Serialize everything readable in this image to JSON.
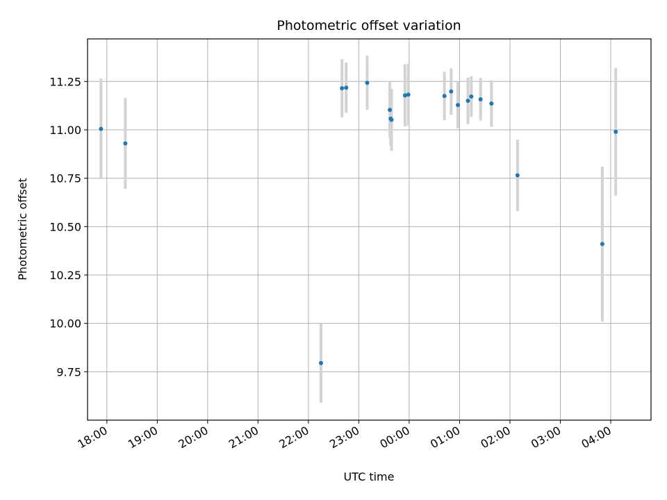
{
  "chart_data": {
    "type": "scatter",
    "title": "Photometric offset variation",
    "xlabel": "UTC time",
    "ylabel": "Photometric offset",
    "x_axis": "time-of-day (UTC), spanning midnight",
    "xlim": [
      "17:37",
      "04:48"
    ],
    "ylim": [
      9.5,
      11.47
    ],
    "x_ticks": [
      "18:00",
      "19:00",
      "20:00",
      "21:00",
      "22:00",
      "23:00",
      "00:00",
      "01:00",
      "02:00",
      "03:00",
      "04:00"
    ],
    "y_ticks": [
      9.75,
      10.0,
      10.25,
      10.5,
      10.75,
      11.0,
      11.25
    ],
    "y_tick_labels": [
      "9.75",
      "10.00",
      "10.25",
      "10.50",
      "10.75",
      "11.00",
      "11.25"
    ],
    "grid": true,
    "marker_color": "#1f77b4",
    "errorbar_color": "#d3d3d3",
    "points": [
      {
        "t": "17:53",
        "y": 11.005,
        "err": 0.26
      },
      {
        "t": "18:22",
        "y": 10.93,
        "err": 0.235
      },
      {
        "t": "22:15",
        "y": 9.795,
        "err": 0.205
      },
      {
        "t": "22:40",
        "y": 11.215,
        "err": 0.15
      },
      {
        "t": "22:45",
        "y": 11.218,
        "err": 0.13
      },
      {
        "t": "23:10",
        "y": 11.243,
        "err": 0.14
      },
      {
        "t": "23:37",
        "y": 11.103,
        "err": 0.145
      },
      {
        "t": "23:38",
        "y": 11.058,
        "err": 0.14
      },
      {
        "t": "23:39",
        "y": 11.052,
        "err": 0.16
      },
      {
        "t": "23:55",
        "y": 11.178,
        "err": 0.16
      },
      {
        "t": "23:59",
        "y": 11.182,
        "err": 0.16
      },
      {
        "t": "00:42",
        "y": 11.175,
        "err": 0.125
      },
      {
        "t": "00:50",
        "y": 11.198,
        "err": 0.12
      },
      {
        "t": "00:58",
        "y": 11.128,
        "err": 0.12
      },
      {
        "t": "01:10",
        "y": 11.15,
        "err": 0.12
      },
      {
        "t": "01:14",
        "y": 11.172,
        "err": 0.105
      },
      {
        "t": "01:25",
        "y": 11.158,
        "err": 0.11
      },
      {
        "t": "01:38",
        "y": 11.136,
        "err": 0.12
      },
      {
        "t": "02:09",
        "y": 10.765,
        "err": 0.185
      },
      {
        "t": "03:50",
        "y": 10.41,
        "err": 0.4
      },
      {
        "t": "04:06",
        "y": 10.99,
        "err": 0.33
      }
    ]
  }
}
